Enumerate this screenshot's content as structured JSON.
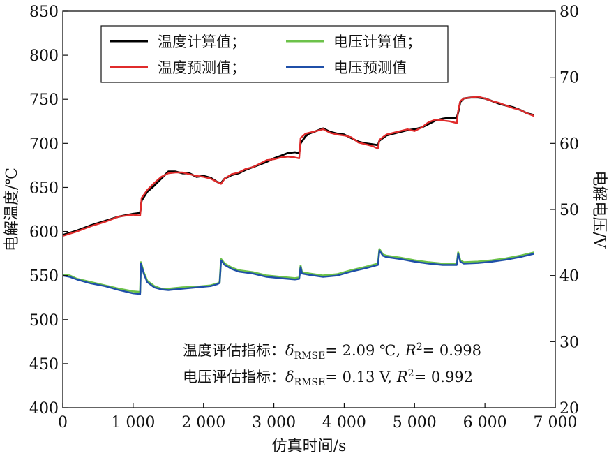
{
  "chart_data": {
    "type": "line",
    "xlabel": "仿真时间/s",
    "ylabel_left": "电解温度/℃",
    "ylabel_right": "电解电压/V",
    "xlim": [
      0,
      7000
    ],
    "ylim_left": [
      400,
      850
    ],
    "ylim_right": [
      20,
      80
    ],
    "x_ticks": [
      0,
      1000,
      2000,
      3000,
      4000,
      5000,
      6000,
      7000
    ],
    "x_tick_labels": [
      "0",
      "1 000",
      "2 000",
      "3 000",
      "4 000",
      "5 000",
      "6 000",
      "7 000"
    ],
    "y_left_ticks": [
      400,
      450,
      500,
      550,
      600,
      650,
      700,
      750,
      800,
      850
    ],
    "y_left_tick_labels": [
      "400",
      "450",
      "500",
      "550",
      "600",
      "650",
      "700",
      "750",
      "800",
      "850"
    ],
    "y_right_ticks": [
      20,
      30,
      40,
      50,
      60,
      70,
      80
    ],
    "y_right_tick_labels": [
      "20",
      "30",
      "40",
      "50",
      "60",
      "70",
      "80"
    ],
    "legend_position": "top-left",
    "legend": [
      {
        "label": "温度计算值；",
        "color": "#000000"
      },
      {
        "label": "电压计算值；",
        "color": "#6cc24a"
      },
      {
        "label": "温度预测值；",
        "color": "#e02b2b"
      },
      {
        "label": "电压预测值",
        "color": "#1f4fa8"
      }
    ],
    "metrics": {
      "temp": {
        "label": "温度评估指标：",
        "delta_sub": "RMSE",
        "delta_value": "= 2.09 ℃,",
        "r2_value": "= 0.998"
      },
      "volt": {
        "label": "电压评估指标：",
        "delta_sub": "RMSE",
        "delta_value": "= 0.13 V,",
        "r2_value": "= 0.992"
      }
    },
    "series": [
      {
        "name": "温度计算值",
        "axis": "left",
        "color": "#000000",
        "x": [
          0,
          200,
          400,
          600,
          800,
          1000,
          1100,
          1120,
          1200,
          1300,
          1400,
          1500,
          1600,
          1700,
          1800,
          1900,
          2000,
          2100,
          2200,
          2250,
          2300,
          2400,
          2500,
          2600,
          2700,
          2800,
          2900,
          3000,
          3100,
          3200,
          3300,
          3360,
          3380,
          3450,
          3500,
          3600,
          3700,
          3800,
          3900,
          4000,
          4100,
          4200,
          4300,
          4400,
          4480,
          4500,
          4550,
          4600,
          4700,
          4800,
          4900,
          5000,
          5100,
          5200,
          5300,
          5400,
          5500,
          5600,
          5620,
          5650,
          5700,
          5800,
          5900,
          6000,
          6100,
          6200,
          6300,
          6400,
          6500,
          6600,
          6700
        ],
        "y": [
          596,
          601,
          607,
          612,
          617,
          620,
          621,
          635,
          645,
          652,
          660,
          668,
          668,
          666,
          666,
          662,
          663,
          661,
          656,
          655,
          660,
          664,
          666,
          670,
          673,
          676,
          679,
          683,
          686,
          689,
          690,
          689,
          700,
          708,
          711,
          714,
          717,
          713,
          711,
          710,
          706,
          702,
          700,
          699,
          698,
          703,
          706,
          709,
          711,
          713,
          715,
          716,
          718,
          722,
          726,
          728,
          729,
          729,
          735,
          747,
          751,
          752,
          752,
          751,
          748,
          745,
          743,
          741,
          738,
          734,
          732
        ]
      },
      {
        "name": "温度预测值",
        "axis": "left",
        "color": "#e02b2b",
        "x": [
          0,
          200,
          400,
          600,
          800,
          1000,
          1100,
          1120,
          1200,
          1300,
          1400,
          1500,
          1600,
          1700,
          1800,
          1900,
          2000,
          2100,
          2200,
          2250,
          2300,
          2400,
          2500,
          2600,
          2700,
          2800,
          2900,
          3000,
          3100,
          3200,
          3300,
          3360,
          3380,
          3450,
          3500,
          3600,
          3700,
          3800,
          3900,
          4000,
          4100,
          4200,
          4300,
          4400,
          4480,
          4500,
          4550,
          4600,
          4700,
          4800,
          4900,
          5000,
          5100,
          5200,
          5300,
          5400,
          5500,
          5600,
          5620,
          5650,
          5700,
          5800,
          5900,
          6000,
          6100,
          6200,
          6300,
          6400,
          6500,
          6600,
          6700
        ],
        "y": [
          595,
          600,
          606,
          611,
          617,
          619,
          618,
          638,
          647,
          655,
          662,
          666,
          667,
          667,
          665,
          663,
          662,
          660,
          656,
          654,
          660,
          665,
          667,
          671,
          673,
          677,
          681,
          682,
          684,
          685,
          684,
          683,
          706,
          711,
          712,
          714,
          716,
          712,
          710,
          709,
          707,
          701,
          699,
          697,
          694,
          704,
          707,
          710,
          712,
          714,
          716,
          714,
          718,
          724,
          727,
          726,
          725,
          723,
          737,
          748,
          751,
          752,
          753,
          751,
          748,
          746,
          743,
          740,
          738,
          734,
          731
        ]
      },
      {
        "name": "电压计算值",
        "axis": "right",
        "color": "#6cc24a",
        "x": [
          0,
          100,
          200,
          400,
          600,
          800,
          1000,
          1100,
          1110,
          1150,
          1200,
          1300,
          1400,
          1500,
          1700,
          1900,
          2100,
          2200,
          2230,
          2250,
          2300,
          2400,
          2500,
          2700,
          2900,
          3100,
          3300,
          3360,
          3380,
          3400,
          3500,
          3700,
          3900,
          4100,
          4300,
          4480,
          4500,
          4550,
          4600,
          4800,
          5000,
          5200,
          5400,
          5600,
          5620,
          5650,
          5700,
          5900,
          6100,
          6300,
          6500,
          6700
        ],
        "y": [
          40.1,
          40.0,
          39.5,
          39.0,
          38.5,
          38.0,
          37.6,
          37.5,
          42.0,
          40.5,
          39.2,
          38.4,
          38.0,
          38.0,
          38.2,
          38.3,
          38.5,
          38.8,
          39.0,
          42.5,
          41.8,
          41.2,
          40.8,
          40.5,
          40.0,
          39.8,
          39.6,
          39.7,
          41.5,
          40.5,
          40.3,
          40.0,
          40.2,
          40.8,
          41.3,
          41.8,
          44.0,
          43.2,
          43.0,
          42.7,
          42.3,
          42.0,
          41.8,
          41.8,
          43.5,
          42.3,
          42.0,
          42.1,
          42.3,
          42.6,
          43.0,
          43.5
        ]
      },
      {
        "name": "电压预测值",
        "axis": "right",
        "color": "#1f4fa8",
        "x": [
          0,
          100,
          200,
          400,
          600,
          800,
          1000,
          1100,
          1110,
          1150,
          1200,
          1300,
          1400,
          1500,
          1700,
          1900,
          2100,
          2200,
          2230,
          2250,
          2300,
          2400,
          2500,
          2700,
          2900,
          3100,
          3300,
          3360,
          3380,
          3400,
          3500,
          3700,
          3900,
          4100,
          4300,
          4480,
          4500,
          4550,
          4600,
          4800,
          5000,
          5200,
          5400,
          5600,
          5620,
          5650,
          5700,
          5900,
          6100,
          6300,
          6500,
          6700
        ],
        "y": [
          40.0,
          39.8,
          39.4,
          38.8,
          38.4,
          37.8,
          37.3,
          37.2,
          41.8,
          40.3,
          39.0,
          38.2,
          37.9,
          37.8,
          38.0,
          38.2,
          38.4,
          38.7,
          38.9,
          42.3,
          41.6,
          41.0,
          40.6,
          40.3,
          39.8,
          39.6,
          39.4,
          39.5,
          41.3,
          40.3,
          40.1,
          39.8,
          40.0,
          40.6,
          41.1,
          41.6,
          43.8,
          43.0,
          42.8,
          42.5,
          42.1,
          41.8,
          41.6,
          41.6,
          43.3,
          42.1,
          41.8,
          41.9,
          42.1,
          42.4,
          42.8,
          43.3
        ]
      }
    ]
  }
}
